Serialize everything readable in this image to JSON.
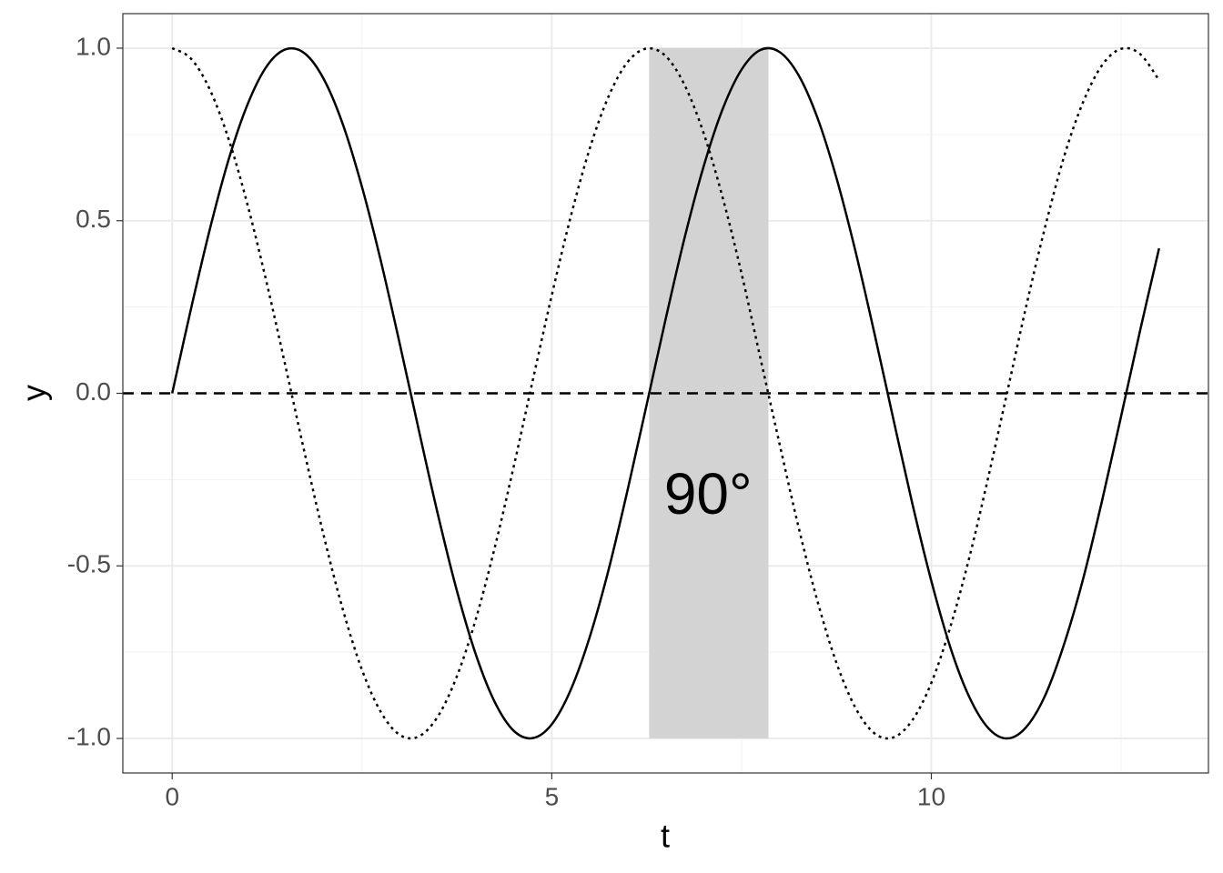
{
  "chart_data": {
    "type": "line",
    "xlabel": "t",
    "ylabel": "y",
    "x": [
      0,
      0.25,
      0.5,
      0.75,
      1,
      1.25,
      1.5,
      1.75,
      2,
      2.25,
      2.5,
      2.75,
      3,
      3.25,
      3.5,
      3.75,
      4,
      4.25,
      4.5,
      4.75,
      5,
      5.25,
      5.5,
      5.75,
      6,
      6.25,
      6.5,
      6.75,
      7,
      7.25,
      7.5,
      7.75,
      8,
      8.25,
      8.5,
      8.75,
      9,
      9.25,
      9.5,
      9.75,
      10,
      10.25,
      10.5,
      10.75,
      11,
      11.25,
      11.5,
      11.75,
      12,
      12.25,
      12.5,
      12.75,
      13
    ],
    "series": [
      {
        "color": "#000000",
        "dash": "solid",
        "values": [
          0,
          0.247,
          0.479,
          0.682,
          0.841,
          0.949,
          0.997,
          0.984,
          0.909,
          0.778,
          0.598,
          0.382,
          0.141,
          -0.108,
          -0.351,
          -0.572,
          -0.757,
          -0.895,
          -0.978,
          -0.999,
          -0.959,
          -0.859,
          -0.706,
          -0.51,
          -0.279,
          -0.033,
          0.215,
          0.451,
          0.657,
          0.823,
          0.938,
          0.995,
          0.989,
          0.922,
          0.798,
          0.624,
          0.412,
          0.174,
          -0.075,
          -0.32,
          -0.544,
          -0.736,
          -0.88,
          -0.97,
          -1.0,
          -0.967,
          -0.875,
          -0.726,
          -0.537,
          -0.31,
          -0.066,
          0.182,
          0.42
        ]
      },
      {
        "color": "#000000",
        "dash": "dotted",
        "values": [
          1,
          0.969,
          0.878,
          0.732,
          0.54,
          0.315,
          0.071,
          -0.178,
          -0.416,
          -0.628,
          -0.801,
          -0.924,
          -0.99,
          -0.994,
          -0.936,
          -0.82,
          -0.654,
          -0.446,
          -0.211,
          0.038,
          0.284,
          0.512,
          0.709,
          0.861,
          0.96,
          0.999,
          0.977,
          0.893,
          0.754,
          0.568,
          0.347,
          0.1,
          -0.146,
          -0.387,
          -0.602,
          -0.781,
          -0.911,
          -0.985,
          -0.997,
          -0.947,
          -0.839,
          -0.677,
          -0.476,
          -0.243,
          0.004,
          0.253,
          0.483,
          0.687,
          0.844,
          0.951,
          0.998,
          0.983,
          0.907
        ]
      }
    ],
    "hline": {
      "y": 0,
      "dash": "dashed",
      "color": "#000000"
    },
    "shade": {
      "xmin": 6.283,
      "xmax": 7.854,
      "ymin": -1,
      "ymax": 1,
      "color": "#d3d3d3"
    },
    "annotation": {
      "text": "90°",
      "x": 7.06,
      "y": -0.305
    },
    "xlim": [
      -0.65,
      13.65
    ],
    "ylim": [
      -1.1,
      1.1
    ],
    "xticks": [
      0,
      5,
      10
    ],
    "yticks": [
      {
        "value": -1,
        "label": "-1.0"
      },
      {
        "value": -0.5,
        "label": "-0.5"
      },
      {
        "value": 0,
        "label": "0.0"
      },
      {
        "value": 0.5,
        "label": "0.5"
      },
      {
        "value": 1,
        "label": "1.0"
      }
    ],
    "xminor": [
      2.5,
      7.5,
      12.5
    ],
    "yminor": [
      -0.75,
      -0.25,
      0.25,
      0.75
    ],
    "grid": true
  }
}
